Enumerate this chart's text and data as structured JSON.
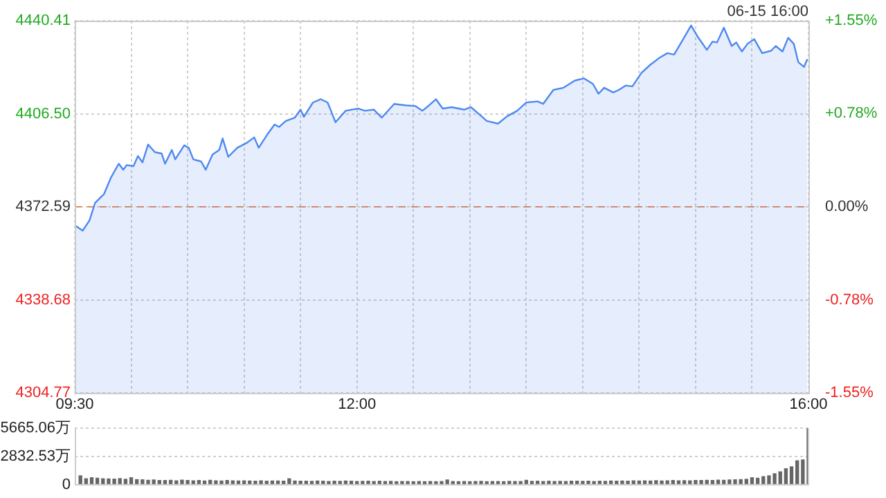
{
  "chart_data": [
    {
      "type": "area",
      "annotations": [
        "06-15 16:00"
      ],
      "color": "#4d88f0",
      "x": [
        9.51,
        9.57,
        9.63,
        9.68,
        9.76,
        9.82,
        9.89,
        9.93,
        9.96,
        10.02,
        10.06,
        10.1,
        10.15,
        10.21,
        10.27,
        10.3,
        10.36,
        10.39,
        10.47,
        10.51,
        10.55,
        10.62,
        10.66,
        10.72,
        10.78,
        10.81,
        10.86,
        10.94,
        11.02,
        11.09,
        11.13,
        11.21,
        11.27,
        11.31,
        11.37,
        11.45,
        11.5,
        11.53,
        11.61,
        11.68,
        11.74,
        11.77,
        11.81,
        11.9,
        12.01,
        12.07,
        12.15,
        12.22,
        12.33,
        12.43,
        12.52,
        12.58,
        12.64,
        12.7,
        12.76,
        12.84,
        12.95,
        13.01,
        13.07,
        13.15,
        13.25,
        13.33,
        13.42,
        13.5,
        13.6,
        13.65,
        13.74,
        13.83,
        13.93,
        14.01,
        14.09,
        14.14,
        14.19,
        14.27,
        14.32,
        14.38,
        14.44,
        14.52,
        14.6,
        14.68,
        14.75,
        14.81,
        14.89,
        14.96,
        15.02,
        15.1,
        15.15,
        15.19,
        15.25,
        15.32,
        15.36,
        15.41,
        15.46,
        15.52,
        15.59,
        15.67,
        15.71,
        15.77,
        15.82,
        15.87,
        15.91,
        15.96,
        15.99
      ],
      "values": [
        4365.6,
        4363.9,
        4367.6,
        4374.0,
        4377.3,
        4383.2,
        4388.3,
        4386.1,
        4387.8,
        4387.4,
        4391.1,
        4388.8,
        4395.3,
        4392.5,
        4392.0,
        4388.3,
        4393.3,
        4389.9,
        4395.0,
        4394.1,
        4389.9,
        4389.1,
        4386.1,
        4391.6,
        4393.3,
        4397.5,
        4390.8,
        4394.1,
        4395.8,
        4397.9,
        4394.1,
        4399.2,
        4402.6,
        4401.7,
        4403.9,
        4405.1,
        4408.0,
        4405.4,
        4410.6,
        4411.8,
        4410.6,
        4407.6,
        4403.4,
        4407.6,
        4408.4,
        4407.6,
        4408.0,
        4405.1,
        4410.1,
        4409.6,
        4409.3,
        4407.6,
        4409.6,
        4411.8,
        4408.4,
        4408.9,
        4408.0,
        4408.9,
        4406.8,
        4403.9,
        4402.9,
        4405.6,
        4407.6,
        4410.6,
        4411.0,
        4410.1,
        4415.2,
        4416.0,
        4418.6,
        4419.4,
        4417.4,
        4413.8,
        4416.0,
        4414.3,
        4415.2,
        4416.8,
        4416.5,
        4421.4,
        4424.4,
        4426.9,
        4428.6,
        4428.1,
        4433.7,
        4438.7,
        4434.5,
        4429.8,
        4432.8,
        4432.5,
        4437.9,
        4431.2,
        4432.5,
        4429.2,
        4432.0,
        4433.7,
        4428.6,
        4429.5,
        4431.2,
        4429.2,
        4434.2,
        4432.0,
        4425.3,
        4423.6,
        4426.4
      ],
      "xlim": [
        9.5,
        16
      ],
      "xticks": [
        {
          "value": 9.5,
          "label": "09:30"
        },
        {
          "value": 10,
          "label": null
        },
        {
          "value": 10.5,
          "label": null
        },
        {
          "value": 11,
          "label": null
        },
        {
          "value": 11.5,
          "label": null
        },
        {
          "value": 12,
          "label": "12:00"
        },
        {
          "value": 12.5,
          "label": null
        },
        {
          "value": 13,
          "label": null
        },
        {
          "value": 13.5,
          "label": null
        },
        {
          "value": 14,
          "label": null
        },
        {
          "value": 14.5,
          "label": null
        },
        {
          "value": 15,
          "label": null
        },
        {
          "value": 15.5,
          "label": null
        },
        {
          "value": 16,
          "label": "16:00"
        }
      ],
      "ylim": [
        4304.77,
        4440.41
      ],
      "yticks": [
        4304.77,
        4338.68,
        4372.59,
        {
          "value": 4406.5,
          "label": "4406.50"
        },
        4440.41
      ],
      "y2lim": [
        -1.55,
        1.55
      ],
      "y2ticks": [
        {
          "value": -1.55,
          "label": "-1.55%"
        },
        {
          "value": -0.78,
          "label": "-0.78%"
        },
        {
          "value": 0,
          "label": "0.00%"
        },
        {
          "value": 0.78,
          "label": "+0.78%"
        },
        {
          "value": 1.55,
          "label": "+1.55%"
        }
      ],
      "ref_lines": [
        {
          "axis": "y",
          "value": 4372.59,
          "color": "#e8875a",
          "line_style": "dashed"
        }
      ],
      "grid": true
    },
    {
      "type": "bar",
      "color": "#666666",
      "tick_labels": "y",
      "grid": "y",
      "x": [
        9.55,
        9.6,
        9.65,
        9.7,
        9.75,
        9.8,
        9.85,
        9.9,
        9.95,
        10.0,
        10.05,
        10.1,
        10.15,
        10.2,
        10.25,
        10.3,
        10.35,
        10.4,
        10.45,
        10.5,
        10.55,
        10.6,
        10.65,
        10.7,
        10.75,
        10.8,
        10.85,
        10.9,
        10.95,
        11.0,
        11.05,
        11.1,
        11.15,
        11.2,
        11.25,
        11.3,
        11.35,
        11.4,
        11.45,
        11.5,
        11.55,
        11.6,
        11.65,
        11.7,
        11.75,
        11.8,
        11.85,
        11.9,
        11.95,
        12.0,
        12.05,
        12.1,
        12.15,
        12.2,
        12.25,
        12.3,
        12.35,
        12.4,
        12.45,
        12.5,
        12.55,
        12.6,
        12.65,
        12.7,
        12.75,
        12.8,
        12.85,
        12.9,
        12.95,
        13.0,
        13.05,
        13.1,
        13.15,
        13.2,
        13.25,
        13.3,
        13.35,
        13.4,
        13.45,
        13.5,
        13.55,
        13.6,
        13.65,
        13.7,
        13.75,
        13.8,
        13.85,
        13.9,
        13.95,
        14.0,
        14.05,
        14.1,
        14.15,
        14.2,
        14.25,
        14.3,
        14.35,
        14.4,
        14.45,
        14.5,
        14.55,
        14.6,
        14.65,
        14.7,
        14.75,
        14.8,
        14.85,
        14.9,
        14.95,
        15.0,
        15.05,
        15.1,
        15.15,
        15.2,
        15.25,
        15.3,
        15.35,
        15.4,
        15.45,
        15.5,
        15.55,
        15.6,
        15.65,
        15.7,
        15.75,
        15.8,
        15.85,
        15.9,
        15.95,
        16.0
      ],
      "values": [
        900,
        600,
        700,
        650,
        600,
        580,
        560,
        620,
        550,
        700,
        520,
        500,
        450,
        480,
        430,
        420,
        450,
        400,
        460,
        420,
        400,
        420,
        380,
        450,
        400,
        380,
        420,
        390,
        370,
        400,
        380,
        360,
        400,
        350,
        380,
        370,
        360,
        600,
        380,
        350,
        360,
        340,
        380,
        350,
        330,
        360,
        340,
        370,
        350,
        330,
        340,
        360,
        320,
        350,
        330,
        340,
        310,
        320,
        330,
        300,
        320,
        310,
        330,
        300,
        320,
        480,
        330,
        310,
        320,
        300,
        320,
        340,
        300,
        330,
        320,
        310,
        340,
        330,
        320,
        450,
        340,
        360,
        330,
        350,
        320,
        340,
        330,
        350,
        360,
        340,
        350,
        330,
        360,
        340,
        380,
        350,
        370,
        360,
        400,
        380,
        390,
        370,
        410,
        380,
        400,
        420,
        390,
        410,
        400,
        430,
        420,
        440,
        430,
        460,
        450,
        480,
        500,
        520,
        550,
        700,
        650,
        800,
        900,
        1100,
        1300,
        1600,
        1800,
        2400,
        2500,
        5665.06
      ],
      "xlim": [
        9.5,
        16
      ],
      "ylim": [
        0,
        5665.06
      ],
      "yticks": [
        0,
        {
          "value": 2832.53,
          "label": "2832.53万"
        },
        {
          "value": 5665.06,
          "label": "5665.06万"
        }
      ]
    }
  ]
}
